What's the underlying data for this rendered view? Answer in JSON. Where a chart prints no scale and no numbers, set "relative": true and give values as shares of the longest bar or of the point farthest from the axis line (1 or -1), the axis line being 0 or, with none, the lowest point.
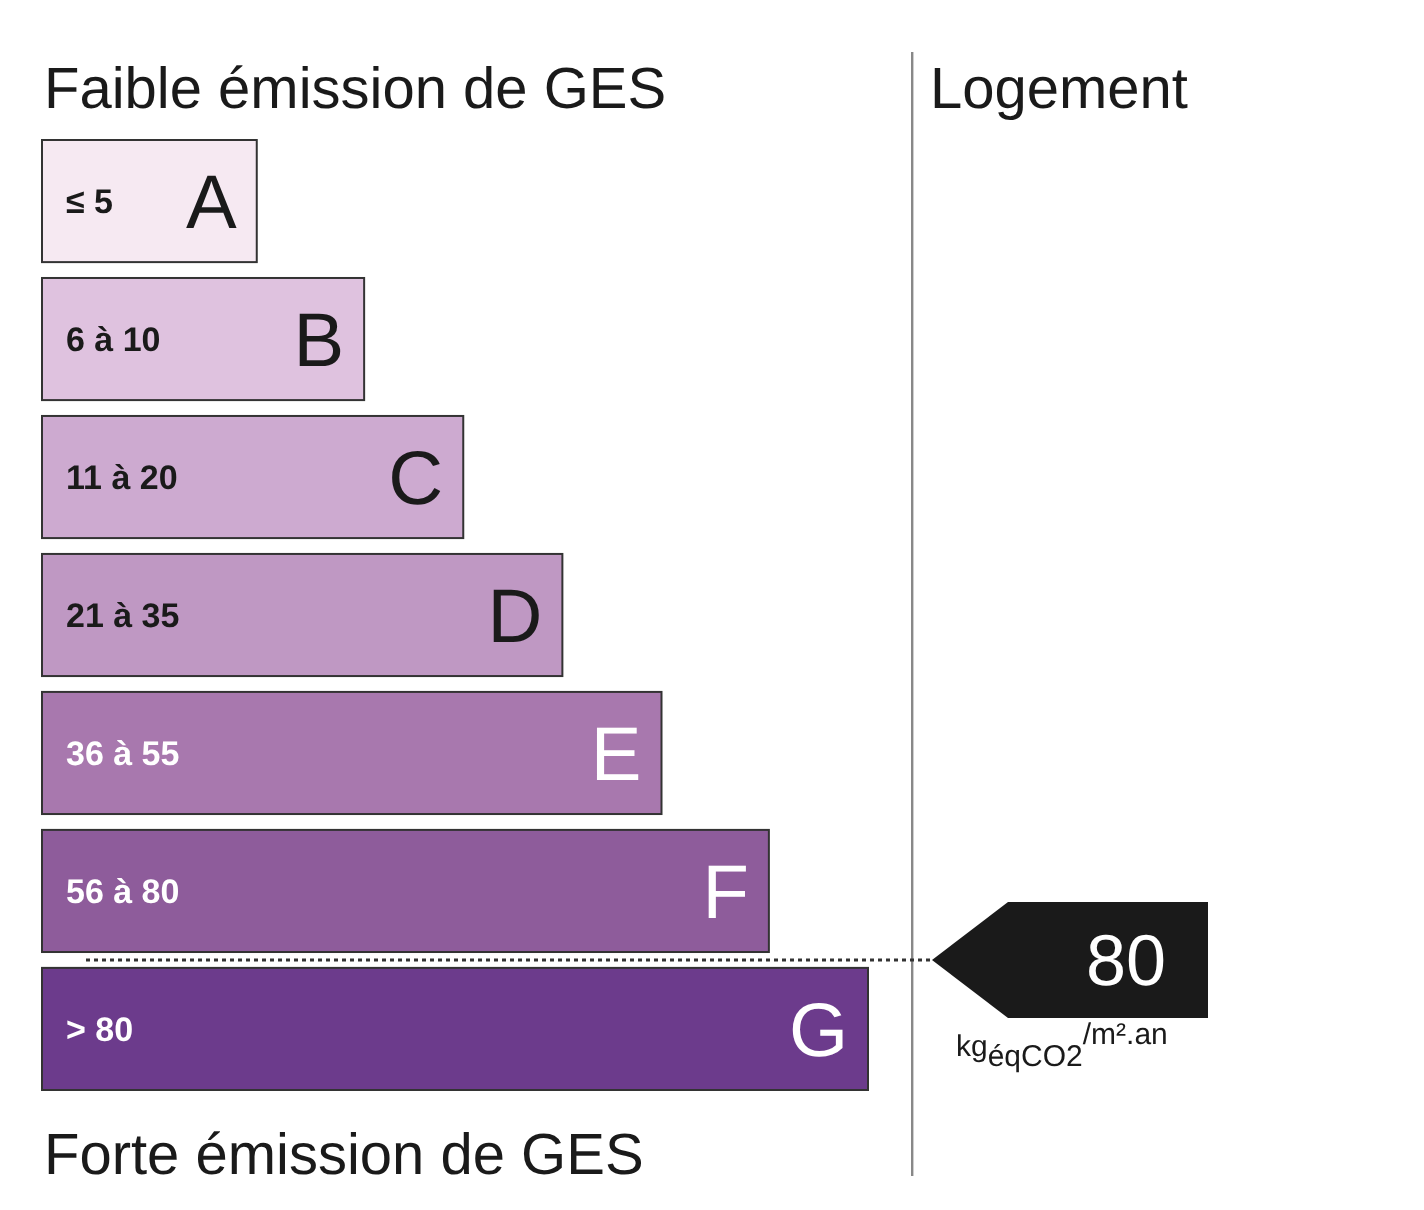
{
  "chart_data": {
    "type": "bar",
    "orientation": "horizontal",
    "relative": true,
    "title": "Faible émission de GES",
    "categories": [
      "A",
      "B",
      "C",
      "D",
      "E",
      "F",
      "G"
    ],
    "values": [
      0.26,
      0.39,
      0.51,
      0.63,
      0.75,
      0.88,
      1
    ],
    "colors": [
      "#f6e9f2",
      "#dfc2df",
      "#cdaad0",
      "#bf98c3",
      "#a878ae",
      "#8e5c9b",
      "#6c3b8c"
    ],
    "annotations": [
      "≤ 5",
      "6 à 10",
      "11 à 20",
      "21 à 35",
      "36 à 55",
      "56 à 80",
      "> 80",
      "Forte émission de GES",
      "Logement",
      "80",
      "kg$_{éqCO2}$$^{/m².an}$"
    ]
  }
}
